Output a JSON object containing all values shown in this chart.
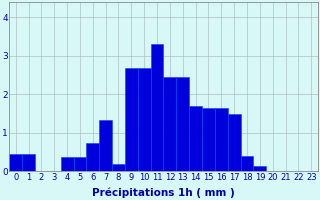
{
  "categories": [
    0,
    1,
    2,
    3,
    4,
    5,
    6,
    7,
    8,
    9,
    10,
    11,
    12,
    13,
    14,
    15,
    16,
    17,
    18,
    19,
    20,
    21,
    22,
    23
  ],
  "values": [
    0.45,
    0.45,
    0.0,
    0.0,
    0.38,
    0.38,
    0.75,
    1.35,
    0.2,
    2.7,
    2.7,
    3.3,
    2.45,
    2.45,
    1.7,
    1.65,
    1.65,
    1.5,
    0.4,
    0.15,
    0.0,
    0.0,
    0.0,
    0.0
  ],
  "bar_color": "#0000dd",
  "edge_color": "#0044ff",
  "bg_color": "#d8f8f8",
  "grid_color": "#aabbbb",
  "xlabel": "Précipitations 1h ( mm )",
  "ylim": [
    0,
    4.4
  ],
  "xlim": [
    -0.5,
    23.5
  ],
  "yticks": [
    0,
    1,
    2,
    3,
    4
  ],
  "xlabel_color": "#0000aa",
  "tick_color": "#0000aa",
  "xlabel_fontsize": 7.5,
  "tick_fontsize": 6
}
